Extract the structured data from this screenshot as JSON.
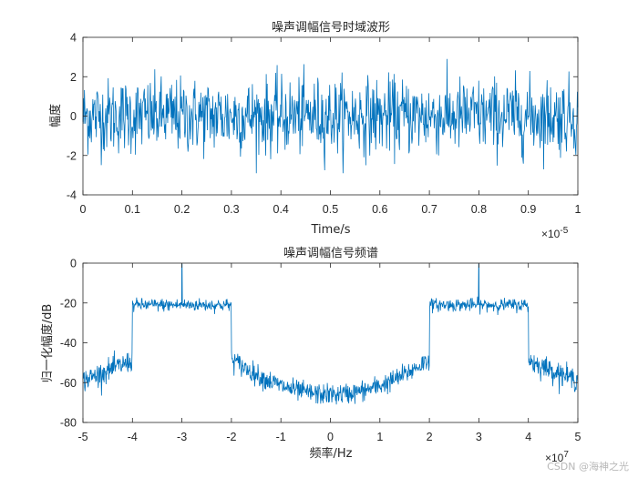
{
  "watermark": "CSDN @海神之光",
  "colors": {
    "line": "#0072BD",
    "axis": "#262626",
    "background": "#ffffff"
  },
  "chart_data": [
    {
      "type": "line",
      "title": "噪声调幅信号时域波形",
      "xlabel": "Time/s",
      "ylabel": "幅度",
      "x_exponent_label": "×10",
      "x_exponent_power": "-5",
      "xlim": [
        0,
        1
      ],
      "ylim": [
        -4,
        4
      ],
      "xticks": [
        "0",
        "0.1",
        "0.2",
        "0.3",
        "0.4",
        "0.5",
        "0.6",
        "0.7",
        "0.8",
        "0.9",
        "1"
      ],
      "yticks": [
        "-4",
        "-2",
        "0",
        "2",
        "4"
      ],
      "grid": false,
      "signal": {
        "description_type": "noise",
        "mean": 0,
        "peak_max": 2.9,
        "peak_min": -2.9,
        "approx_std": 0.95,
        "samples": 1000
      }
    },
    {
      "type": "line",
      "title": "噪声调幅信号频谱",
      "xlabel": "频率/Hz",
      "ylabel": "归一化幅度/dB",
      "x_exponent_label": "×10",
      "x_exponent_power": "7",
      "xlim": [
        -5,
        5
      ],
      "ylim": [
        -80,
        0
      ],
      "xticks": [
        "-5",
        "-4",
        "-3",
        "-2",
        "-1",
        "0",
        "1",
        "2",
        "3",
        "4",
        "5"
      ],
      "yticks": [
        "-80",
        "-60",
        "-40",
        "-20",
        "0"
      ],
      "grid": false,
      "bands": [
        {
          "from": -4,
          "to": -2,
          "level_db": -21
        },
        {
          "from": 2,
          "to": 4,
          "level_db": -21
        }
      ],
      "carrier_peaks": [
        {
          "x": -3,
          "db": 0
        },
        {
          "x": 3,
          "db": 0
        }
      ],
      "outer_floor_db": -60,
      "center_floor_db": -66
    }
  ]
}
